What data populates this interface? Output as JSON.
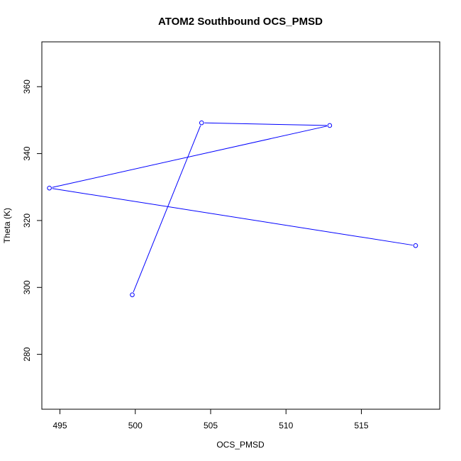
{
  "chart_data": {
    "type": "line",
    "title": "ATOM2 Southbound OCS_PMSD",
    "xlabel": "OCS_PMSD",
    "ylabel": "Theta (K)",
    "xlim": [
      493.8,
      520.2
    ],
    "ylim": [
      263.6,
      373.4
    ],
    "x_ticks": [
      495,
      500,
      505,
      510,
      515
    ],
    "y_ticks": [
      280,
      300,
      320,
      340,
      360
    ],
    "grid": false,
    "legend": "none",
    "series": [
      {
        "color": "#0000ff",
        "marker": "open-circle",
        "points": [
          {
            "x": 499.8,
            "y": 297.8
          },
          {
            "x": 504.4,
            "y": 349.2
          },
          {
            "x": 512.9,
            "y": 348.4
          },
          {
            "x": 494.3,
            "y": 329.7
          },
          {
            "x": 518.6,
            "y": 312.5
          }
        ]
      }
    ]
  }
}
